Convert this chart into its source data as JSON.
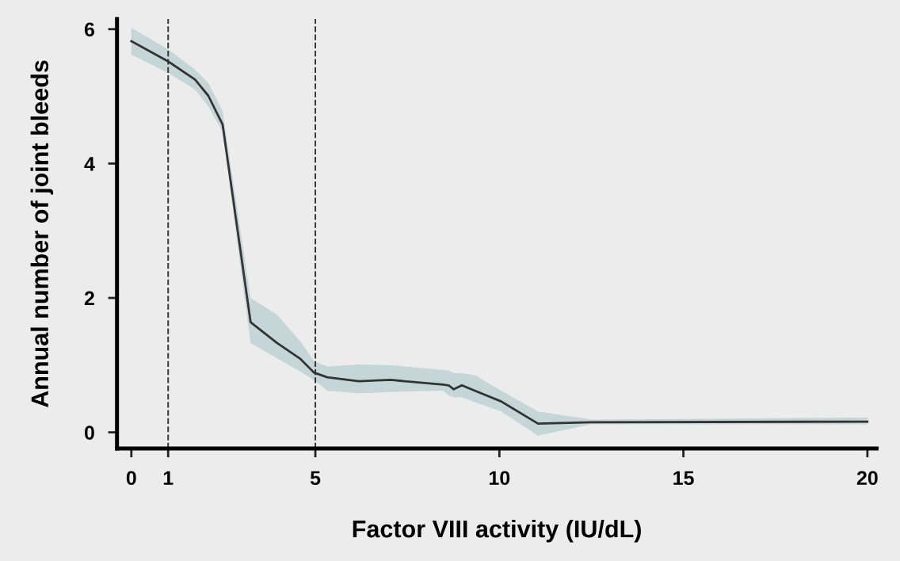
{
  "chart_data": {
    "type": "line",
    "xlabel": "Factor VIII activity (IU/dL)",
    "ylabel": "Annual number of joint bleeds",
    "xlim": [
      -0.39,
      20.25
    ],
    "ylim": [
      -0.24,
      6.15
    ],
    "xticks": [
      0,
      1,
      5,
      10,
      15,
      20
    ],
    "yticks": [
      0,
      2,
      4,
      6
    ],
    "grid": false,
    "legend": false,
    "marker": "none",
    "line_style": "solid",
    "series": [
      {
        "color": "#333333",
        "x": [
          0,
          1,
          1.73,
          2.09,
          2.48,
          3.24,
          3.96,
          4.6,
          4.96,
          5.32,
          6.18,
          7.04,
          8.47,
          8.62,
          8.76,
          8.98,
          9.33,
          10.05,
          11.05,
          12.5,
          20
        ],
        "values": [
          5.82,
          5.52,
          5.25,
          5.01,
          4.58,
          1.64,
          1.33,
          1.09,
          0.89,
          0.82,
          0.76,
          0.78,
          0.71,
          0.7,
          0.64,
          0.7,
          0.62,
          0.46,
          0.13,
          0.15,
          0.16
        ],
        "lower": [
          5.62,
          5.35,
          5.1,
          4.85,
          4.47,
          1.33,
          1.1,
          0.9,
          0.78,
          0.62,
          0.58,
          0.6,
          0.62,
          0.55,
          0.52,
          0.52,
          0.45,
          0.31,
          -0.05,
          0.12,
          0.12
        ],
        "upper": [
          6.02,
          5.7,
          5.4,
          5.2,
          4.78,
          2.0,
          1.75,
          1.35,
          1.06,
          0.98,
          1.01,
          1.0,
          0.93,
          0.92,
          0.88,
          0.88,
          0.85,
          0.62,
          0.31,
          0.19,
          0.22
        ]
      }
    ],
    "ref_lines": [
      {
        "axis": "x",
        "value": 1,
        "color": "#333333",
        "line_style": "dashed"
      },
      {
        "axis": "x",
        "value": 5,
        "color": "#333333",
        "line_style": "dashed"
      }
    ]
  }
}
